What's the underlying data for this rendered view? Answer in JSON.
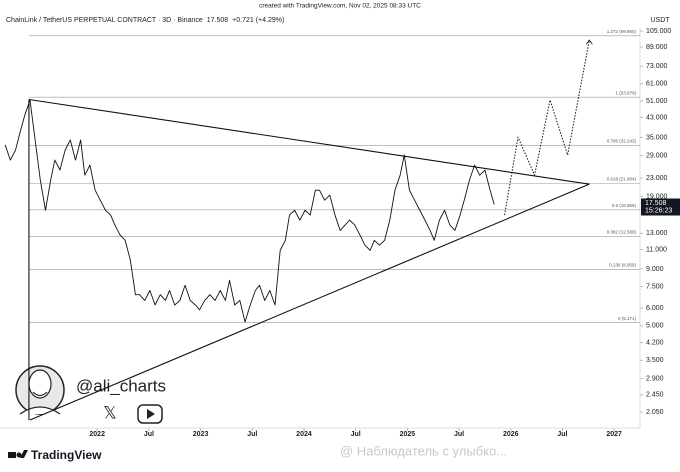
{
  "created": "created with TradingView.com, Nov 02, 2025 08:33 UTC",
  "symbol": "ChainLink / TetherUS PERPETUAL CONTRACT · 3D · Binance",
  "change": "+0.721 (+4.29%)",
  "currency": "USDT",
  "countdown": "15:26:23",
  "brand": "TradingView",
  "author": "@ali_charts",
  "watermark": "@ Наблюдатель с улыбко...",
  "chart_data": {
    "type": "line",
    "log": true,
    "grid": false,
    "xlim": [
      2021.06,
      2027.25
    ],
    "xticks": [
      2022,
      {
        "value": 2022.5,
        "label": "Jul"
      },
      2023,
      {
        "value": 2023.5,
        "label": "Jul"
      },
      2024,
      {
        "value": 2024.5,
        "label": "Jul"
      },
      2025,
      {
        "value": 2025.5,
        "label": "Jul"
      },
      2026,
      {
        "value": 2026.5,
        "label": "Jul"
      },
      2027
    ],
    "ylim": [
      1.74,
      106.2
    ],
    "yticks": [
      {
        "value": 105,
        "label": "105.000"
      },
      {
        "value": 89,
        "label": "89.000"
      },
      {
        "value": 73,
        "label": "73.000"
      },
      {
        "value": 61,
        "label": "61.000"
      },
      {
        "value": 51,
        "label": "51.000"
      },
      {
        "value": 43,
        "label": "43.000"
      },
      {
        "value": 35,
        "label": "35.000"
      },
      {
        "value": 29,
        "label": "29.000"
      },
      {
        "value": 23,
        "label": "23.000"
      },
      {
        "value": 19,
        "label": "19.000"
      },
      {
        "value": 13,
        "label": "13.000"
      },
      {
        "value": 11,
        "label": "11.000"
      },
      {
        "value": 9,
        "label": "9.000"
      },
      {
        "value": 7.5,
        "label": "7.500"
      },
      {
        "value": 6,
        "label": "6.000"
      },
      {
        "value": 5,
        "label": "5.000"
      },
      {
        "value": 4.2,
        "label": "4.200"
      },
      {
        "value": 3.5,
        "label": "3.500"
      },
      {
        "value": 2.9,
        "label": "2.900"
      },
      {
        "value": 2.45,
        "label": "2.450"
      },
      {
        "value": 2.05,
        "label": "2.050"
      }
    ],
    "series": [
      {
        "color": "#111111",
        "x": [
          2021.11,
          2021.16,
          2021.21,
          2021.26,
          2021.3,
          2021.35,
          2021.4,
          2021.45,
          2021.5,
          2021.55,
          2021.59,
          2021.64,
          2021.69,
          2021.74,
          2021.79,
          2021.84,
          2021.88,
          2021.93,
          2021.98,
          2022.03,
          2022.08,
          2022.13,
          2022.17,
          2022.22,
          2022.27,
          2022.32,
          2022.37,
          2022.41,
          2022.46,
          2022.51,
          2022.56,
          2022.61,
          2022.66,
          2022.7,
          2022.75,
          2022.8,
          2022.85,
          2022.9,
          2022.95,
          2022.99,
          2023.04,
          2023.09,
          2023.14,
          2023.19,
          2023.24,
          2023.28,
          2023.33,
          2023.38,
          2023.43,
          2023.48,
          2023.53,
          2023.57,
          2023.62,
          2023.67,
          2023.72,
          2023.77,
          2023.82,
          2023.86,
          2023.91,
          2023.96,
          2024.01,
          2024.06,
          2024.11,
          2024.15,
          2024.2,
          2024.25,
          2024.3,
          2024.35,
          2024.4,
          2024.44,
          2024.49,
          2024.54,
          2024.59,
          2024.64,
          2024.68,
          2024.73,
          2024.78,
          2024.83,
          2024.88,
          2024.93,
          2024.97,
          2025.02,
          2025.07,
          2025.12,
          2025.17,
          2025.22,
          2025.26,
          2025.31,
          2025.36,
          2025.41,
          2025.46,
          2025.51,
          2025.55,
          2025.6,
          2025.65,
          2025.7,
          2025.75,
          2025.8,
          2025.84
        ],
        "values": [
          32.4,
          27.7,
          30.7,
          37.8,
          44.1,
          51.5,
          34.1,
          22.5,
          16.5,
          22.5,
          27.7,
          25.0,
          30.7,
          34.1,
          27.7,
          34.1,
          23.7,
          26.3,
          20.3,
          18.3,
          16.5,
          15.7,
          14.2,
          12.8,
          12.1,
          9.9,
          6.9,
          6.9,
          6.5,
          7.2,
          6.2,
          6.9,
          6.5,
          7.2,
          6.2,
          6.5,
          7.6,
          6.5,
          6.2,
          5.9,
          6.5,
          6.9,
          6.5,
          7.2,
          6.5,
          8.0,
          6.2,
          6.5,
          5.2,
          6.2,
          7.2,
          7.6,
          6.5,
          7.2,
          6.2,
          10.9,
          12.1,
          15.7,
          16.5,
          14.9,
          16.5,
          15.7,
          20.3,
          20.3,
          18.3,
          19.3,
          15.7,
          13.4,
          14.2,
          14.9,
          14.2,
          12.8,
          11.5,
          10.9,
          12.1,
          11.5,
          12.1,
          14.9,
          20.3,
          23.7,
          29.2,
          20.3,
          18.3,
          16.5,
          14.9,
          13.4,
          12.1,
          14.9,
          16.5,
          14.2,
          13.4,
          15.7,
          18.3,
          22.5,
          26.3,
          23.7,
          25.0,
          20.3,
          17.508
        ]
      },
      {
        "color": "#111111",
        "dashed": true,
        "x": [
          2025.94,
          2026.07,
          2026.23,
          2026.38,
          2026.55,
          2026.76
        ],
        "values": [
          15.7,
          35.1,
          23.7,
          51.5,
          29.2,
          95.7
        ]
      }
    ],
    "trendlines": [
      {
        "x": [
          2021.34,
          2026.76
        ],
        "values": [
          51.8,
          21.6
        ]
      },
      {
        "x": [
          2021.35,
          2026.76
        ],
        "values": [
          1.89,
          21.6
        ]
      },
      {
        "x": [
          2021.34,
          2021.34
        ],
        "values": [
          51.8,
          1.89
        ]
      }
    ],
    "fib_levels": [
      {
        "value": 99.96,
        "label": "1.272 (99.960)"
      },
      {
        "value": 53.07,
        "label": "1 (53.070)"
      },
      {
        "value": 32.243,
        "label": "0.786 (32.243)"
      },
      {
        "value": 21.804,
        "label": "0.618 (21.804)"
      },
      {
        "value": 16.566,
        "label": "0.5 (16.566)"
      },
      {
        "value": 12.588,
        "label": "0.382 (12.588)"
      },
      {
        "value": 8.959,
        "label": "0.236 (8.959)"
      },
      {
        "value": 5.171,
        "label": "0 (5.171)"
      }
    ]
  }
}
